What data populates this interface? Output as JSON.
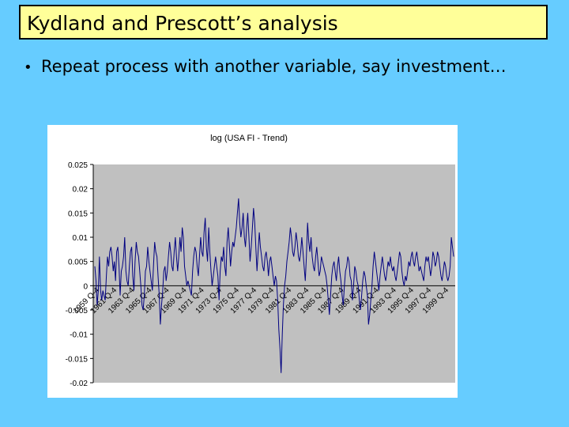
{
  "slide": {
    "title": "Kydland and Prescott’s analysis",
    "bullet_marker": "•",
    "bullet_text": "Repeat process with another variable, say investment…"
  },
  "colors": {
    "background": "#66ccff",
    "title_box": "#ffff99",
    "plot_area": "#c0c0c0",
    "series_line": "#000080"
  },
  "chart_data": {
    "type": "line",
    "title": "log (USA FI - Trend)",
    "xlabel": "",
    "ylabel": "",
    "ylim": [
      -0.02,
      0.025
    ],
    "y_ticks": [
      0.025,
      0.02,
      0.015,
      0.01,
      0.005,
      0,
      -0.005,
      -0.01,
      -0.015,
      -0.02
    ],
    "y_tick_labels": [
      "0.025",
      "0.02",
      "0.015",
      "0.01",
      "0.005",
      "0",
      "-0.005",
      "-0.01",
      "-0.015",
      "-0.02"
    ],
    "x_tick_labels": [
      "1959 Q-4",
      "1961 Q-4",
      "1963 Q-4",
      "1965 Q-4",
      "1967 Q-4",
      "1969 Q-4",
      "1971 Q-4",
      "1973 Q-4",
      "1975 Q-4",
      "1977 Q-4",
      "1979 Q-4",
      "1981 Q-4",
      "1983 Q-4",
      "1985 Q-4",
      "1987 Q-4",
      "1989 Q-4",
      "1991 Q-4",
      "1993 Q-4",
      "1995 Q-4",
      "1997 Q-4",
      "1999 Q-4"
    ],
    "grid": false,
    "legend": "none",
    "series": [
      {
        "values": [
          0.004,
          0.001,
          -0.004,
          -0.001,
          0.006,
          -0.001,
          -0.003,
          -0.001,
          -0.002,
          -0.003,
          0.002,
          0.006,
          0.004,
          0.007,
          0.008,
          0.006,
          0.003,
          0.005,
          0.001,
          0.007,
          0.008,
          0.004,
          -0.002,
          0.003,
          0.004,
          0.006,
          0.01,
          0.003,
          0.001,
          0.0,
          0.004,
          0.007,
          0.008,
          0.002,
          -0.001,
          0.005,
          0.009,
          0.007,
          0.006,
          0.003,
          0.0,
          -0.004,
          -0.005,
          -0.002,
          0.003,
          0.004,
          0.008,
          0.005,
          0.003,
          0.001,
          -0.001,
          0.004,
          0.009,
          0.007,
          0.006,
          0.002,
          -0.002,
          -0.008,
          -0.004,
          -0.001,
          0.003,
          0.004,
          0.001,
          0.003,
          0.006,
          0.009,
          0.007,
          0.004,
          0.003,
          0.007,
          0.01,
          0.006,
          0.003,
          0.006,
          0.01,
          0.007,
          0.012,
          0.01,
          0.004,
          0.002,
          0.0,
          0.001,
          0.0,
          -0.001,
          -0.002,
          0.003,
          0.006,
          0.008,
          0.007,
          0.004,
          0.002,
          0.006,
          0.01,
          0.007,
          0.006,
          0.011,
          0.014,
          0.008,
          0.005,
          0.012,
          0.007,
          0.003,
          0.0,
          0.002,
          0.004,
          0.006,
          0.004,
          0.002,
          -0.003,
          0.003,
          0.006,
          0.005,
          0.008,
          0.004,
          0.002,
          0.009,
          0.012,
          0.008,
          0.004,
          0.007,
          0.009,
          0.008,
          0.01,
          0.012,
          0.015,
          0.018,
          0.013,
          0.01,
          0.012,
          0.015,
          0.01,
          0.008,
          0.012,
          0.015,
          0.01,
          0.005,
          0.008,
          0.012,
          0.016,
          0.013,
          0.008,
          0.003,
          0.007,
          0.011,
          0.008,
          0.006,
          0.004,
          0.003,
          0.006,
          0.007,
          0.005,
          0.002,
          0.005,
          0.006,
          0.004,
          0.002,
          0.0,
          0.002,
          0.001,
          -0.003,
          -0.009,
          -0.013,
          -0.018,
          -0.01,
          -0.004,
          0.0,
          0.002,
          0.005,
          0.007,
          0.009,
          0.012,
          0.01,
          0.007,
          0.006,
          0.008,
          0.011,
          0.009,
          0.006,
          0.005,
          0.007,
          0.01,
          0.007,
          0.004,
          0.001,
          0.006,
          0.013,
          0.009,
          0.007,
          0.01,
          0.006,
          0.004,
          0.003,
          0.006,
          0.008,
          0.005,
          0.002,
          0.003,
          0.006,
          0.005,
          0.004,
          0.003,
          0.002,
          0.0,
          -0.003,
          -0.006,
          -0.002,
          0.002,
          0.004,
          0.005,
          0.003,
          0.001,
          0.004,
          0.006,
          0.003,
          0.001,
          -0.002,
          -0.004,
          0.0,
          0.003,
          0.004,
          0.006,
          0.005,
          0.002,
          0.001,
          -0.003,
          0.0,
          0.004,
          0.003,
          0.001,
          0.0,
          -0.003,
          -0.005,
          -0.002,
          0.001,
          0.003,
          0.002,
          0.0,
          -0.002,
          -0.008,
          -0.006,
          -0.003,
          0.0,
          0.004,
          0.007,
          0.005,
          0.003,
          0.001,
          -0.001,
          0.002,
          0.004,
          0.006,
          0.004,
          0.002,
          0.001,
          0.003,
          0.005,
          0.004,
          0.006,
          0.004,
          0.003,
          0.004,
          0.002,
          0.001,
          0.003,
          0.005,
          0.007,
          0.006,
          0.003,
          0.001,
          0.0,
          0.002,
          0.001,
          0.003,
          0.005,
          0.004,
          0.006,
          0.007,
          0.005,
          0.004,
          0.006,
          0.007,
          0.005,
          0.003,
          0.004,
          0.003,
          0.002,
          0.001,
          0.004,
          0.006,
          0.005,
          0.006,
          0.004,
          0.002,
          0.004,
          0.007,
          0.006,
          0.004,
          0.005,
          0.007,
          0.006,
          0.004,
          0.002,
          0.001,
          0.003,
          0.005,
          0.004,
          0.002,
          0.001,
          0.002,
          0.004,
          0.01,
          0.008,
          0.006
        ]
      }
    ]
  }
}
